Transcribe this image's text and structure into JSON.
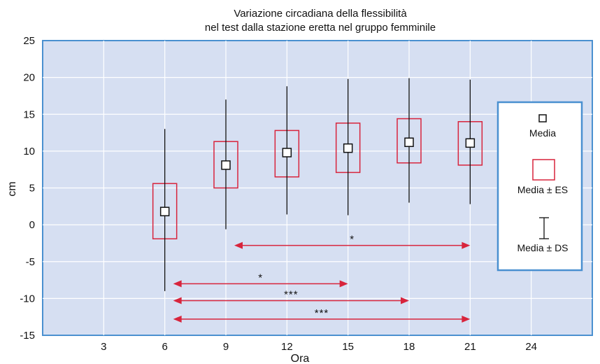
{
  "chart_data": {
    "type": "box",
    "title_line1": "Variazione circadiana della flessibilità",
    "title_line2": "nel test dalla stazione eretta nel gruppo femminile",
    "xlabel": "Ora",
    "ylabel": "cm",
    "xlim": [
      0,
      27
    ],
    "ylim": [
      -15,
      25
    ],
    "xticks": [
      3,
      6,
      9,
      12,
      15,
      18,
      21,
      24
    ],
    "yticks": [
      -15,
      -10,
      -5,
      0,
      5,
      10,
      15,
      20,
      25
    ],
    "grid": true,
    "colors": {
      "plot_bg": "#d6dff2",
      "frame": "#4a90d0",
      "box": "#d8243c",
      "whisker": "#111111",
      "arrow": "#d8243c"
    },
    "series": [
      {
        "x": 6,
        "mean": 1.8,
        "se_low": -1.9,
        "se_high": 5.6,
        "sd_low": -9.0,
        "sd_high": 13.0
      },
      {
        "x": 9,
        "mean": 8.1,
        "se_low": 5.0,
        "se_high": 11.3,
        "sd_low": -0.6,
        "sd_high": 17.0
      },
      {
        "x": 12,
        "mean": 9.8,
        "se_low": 6.5,
        "se_high": 12.8,
        "sd_low": 1.4,
        "sd_high": 18.8
      },
      {
        "x": 15,
        "mean": 10.4,
        "se_low": 7.1,
        "se_high": 13.8,
        "sd_low": 1.3,
        "sd_high": 19.8
      },
      {
        "x": 18,
        "mean": 11.2,
        "se_low": 8.4,
        "se_high": 14.4,
        "sd_low": 3.0,
        "sd_high": 19.9
      },
      {
        "x": 21,
        "mean": 11.1,
        "se_low": 8.1,
        "se_high": 14.0,
        "sd_low": 2.8,
        "sd_high": 19.7
      }
    ],
    "significance": [
      {
        "from": 9,
        "to": 21,
        "y": -2.8,
        "label": "*"
      },
      {
        "from": 6,
        "to": 15,
        "y": -8.0,
        "label": "*"
      },
      {
        "from": 6,
        "to": 18,
        "y": -10.3,
        "label": "***"
      },
      {
        "from": 6,
        "to": 21,
        "y": -12.8,
        "label": "***"
      }
    ],
    "legend": {
      "placement": "right",
      "mean_label": "Media",
      "se_label": "Media ± ES",
      "sd_label": "Media ± DS"
    }
  }
}
